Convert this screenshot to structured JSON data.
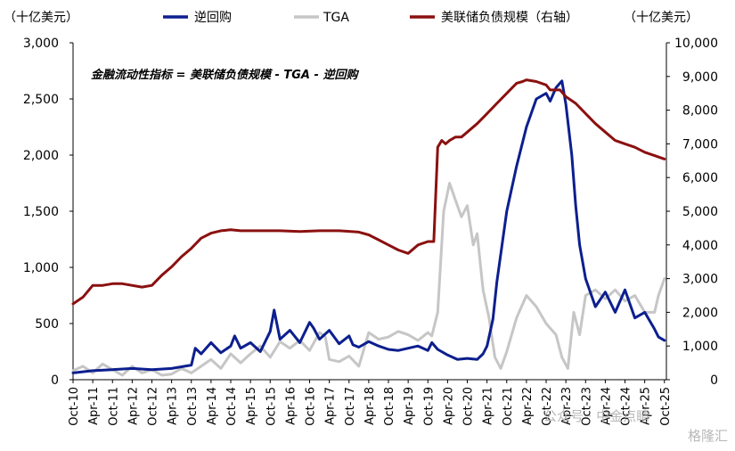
{
  "chart_data": {
    "type": "line",
    "y_left_unit": "（十亿美元）",
    "y_right_unit": "（十亿美元）",
    "annotation": "金融流动性指标 = 美联储负债规模 - TGA - 逆回购",
    "watermark": "公众号 · 中金点睛",
    "watermark_logo": "格隆汇",
    "y_left_ticks": [
      "0",
      "500",
      "1,000",
      "1,500",
      "2,000",
      "2,500",
      "3,000"
    ],
    "y_left_lim": [
      0,
      3000
    ],
    "y_right_ticks": [
      "0",
      "1,000",
      "2,000",
      "3,000",
      "4,000",
      "5,000",
      "6,000",
      "7,000",
      "8,000",
      "9,000",
      "10,000"
    ],
    "y_right_lim": [
      0,
      10000
    ],
    "x_lim": [
      2010.75,
      2025.8
    ],
    "x_tick_labels": [
      "Oct-10",
      "Apr-11",
      "Oct-11",
      "Apr-12",
      "Oct-12",
      "Apr-13",
      "Oct-13",
      "Apr-14",
      "Oct-14",
      "Apr-15",
      "Oct-15",
      "Apr-16",
      "Oct-16",
      "Apr-17",
      "Oct-17",
      "Apr-18",
      "Oct-18",
      "Apr-19",
      "Oct-19",
      "Apr-20",
      "Oct-20",
      "Apr-21",
      "Oct-21",
      "Apr-22",
      "Oct-22",
      "Apr-23",
      "Oct-23",
      "Apr-24",
      "Oct-24",
      "Apr-25",
      "Oct-25"
    ],
    "series": [
      {
        "name": "逆回购",
        "axis": "left",
        "color": "#0c1f8e",
        "x": [
          2010.75,
          2011.25,
          2011.75,
          2012.25,
          2012.75,
          2013.25,
          2013.75,
          2013.85,
          2014.0,
          2014.25,
          2014.5,
          2014.75,
          2014.85,
          2015.0,
          2015.25,
          2015.5,
          2015.75,
          2015.85,
          2016.0,
          2016.25,
          2016.5,
          2016.75,
          2016.85,
          2017.0,
          2017.25,
          2017.5,
          2017.75,
          2017.85,
          2018.0,
          2018.25,
          2018.5,
          2018.75,
          2019.0,
          2019.25,
          2019.5,
          2019.75,
          2019.85,
          2020.0,
          2020.25,
          2020.5,
          2020.75,
          2021.0,
          2021.15,
          2021.25,
          2021.4,
          2021.5,
          2021.75,
          2022.0,
          2022.25,
          2022.5,
          2022.75,
          2022.85,
          2023.0,
          2023.15,
          2023.25,
          2023.4,
          2023.5,
          2023.6,
          2023.75,
          2024.0,
          2024.25,
          2024.5,
          2024.75,
          2025.0,
          2025.25,
          2025.5,
          2025.6,
          2025.75
        ],
        "values": [
          60,
          80,
          90,
          100,
          90,
          100,
          130,
          280,
          230,
          330,
          240,
          300,
          390,
          280,
          330,
          250,
          430,
          620,
          360,
          440,
          330,
          510,
          460,
          360,
          440,
          320,
          390,
          310,
          290,
          340,
          300,
          270,
          260,
          280,
          300,
          260,
          330,
          270,
          220,
          180,
          190,
          180,
          230,
          300,
          540,
          870,
          1500,
          1900,
          2250,
          2500,
          2550,
          2480,
          2600,
          2660,
          2450,
          2000,
          1550,
          1200,
          900,
          650,
          780,
          600,
          800,
          550,
          600,
          450,
          380,
          350
        ]
      },
      {
        "name": "TGA",
        "axis": "left",
        "color": "#c6c6c6",
        "x": [
          2010.75,
          2011.0,
          2011.25,
          2011.5,
          2011.75,
          2012.0,
          2012.25,
          2012.5,
          2012.75,
          2013.0,
          2013.25,
          2013.5,
          2013.75,
          2014.0,
          2014.25,
          2014.5,
          2014.75,
          2015.0,
          2015.25,
          2015.5,
          2015.75,
          2016.0,
          2016.25,
          2016.5,
          2016.75,
          2017.0,
          2017.15,
          2017.25,
          2017.5,
          2017.75,
          2018.0,
          2018.25,
          2018.5,
          2018.75,
          2019.0,
          2019.25,
          2019.5,
          2019.75,
          2019.85,
          2020.0,
          2020.15,
          2020.3,
          2020.45,
          2020.6,
          2020.75,
          2020.9,
          2021.0,
          2021.15,
          2021.3,
          2021.45,
          2021.6,
          2021.75,
          2022.0,
          2022.25,
          2022.5,
          2022.75,
          2023.0,
          2023.15,
          2023.3,
          2023.45,
          2023.6,
          2023.75,
          2024.0,
          2024.25,
          2024.5,
          2024.75,
          2025.0,
          2025.25,
          2025.5,
          2025.6,
          2025.75
        ],
        "values": [
          80,
          120,
          60,
          140,
          90,
          40,
          120,
          60,
          90,
          40,
          50,
          100,
          60,
          120,
          180,
          100,
          230,
          150,
          230,
          300,
          200,
          340,
          280,
          350,
          260,
          420,
          380,
          180,
          160,
          210,
          120,
          420,
          360,
          380,
          430,
          400,
          350,
          420,
          390,
          600,
          1500,
          1750,
          1600,
          1450,
          1550,
          1200,
          1300,
          800,
          550,
          200,
          100,
          250,
          550,
          750,
          650,
          500,
          400,
          200,
          100,
          600,
          400,
          750,
          800,
          720,
          800,
          700,
          750,
          600,
          600,
          750,
          900
        ]
      },
      {
        "name": "美联储负债规模（右轴）",
        "axis": "right",
        "color": "#8b1010",
        "x": [
          2010.75,
          2011.0,
          2011.25,
          2011.5,
          2011.75,
          2012.0,
          2012.5,
          2012.75,
          2013.0,
          2013.25,
          2013.5,
          2013.75,
          2014.0,
          2014.25,
          2014.5,
          2014.75,
          2015.0,
          2015.5,
          2016.0,
          2016.5,
          2017.0,
          2017.5,
          2018.0,
          2018.25,
          2018.5,
          2018.75,
          2019.0,
          2019.25,
          2019.5,
          2019.75,
          2019.9,
          2020.0,
          2020.1,
          2020.2,
          2020.3,
          2020.45,
          2020.6,
          2020.75,
          2021.0,
          2021.25,
          2021.5,
          2021.75,
          2022.0,
          2022.15,
          2022.25,
          2022.5,
          2022.75,
          2022.85,
          2022.95,
          2023.1,
          2023.25,
          2023.5,
          2023.75,
          2024.0,
          2024.25,
          2024.5,
          2024.75,
          2025.0,
          2025.25,
          2025.5,
          2025.75
        ],
        "values": [
          2250,
          2450,
          2800,
          2800,
          2850,
          2850,
          2750,
          2800,
          3100,
          3350,
          3650,
          3900,
          4200,
          4350,
          4420,
          4450,
          4420,
          4420,
          4420,
          4400,
          4420,
          4420,
          4380,
          4300,
          4150,
          4000,
          3850,
          3750,
          4000,
          4100,
          4100,
          6900,
          7100,
          7000,
          7100,
          7200,
          7200,
          7350,
          7600,
          7900,
          8200,
          8500,
          8800,
          8850,
          8900,
          8850,
          8750,
          8600,
          8600,
          8600,
          8400,
          8200,
          7900,
          7600,
          7350,
          7100,
          7000,
          6900,
          6750,
          6650,
          6550
        ]
      }
    ]
  }
}
